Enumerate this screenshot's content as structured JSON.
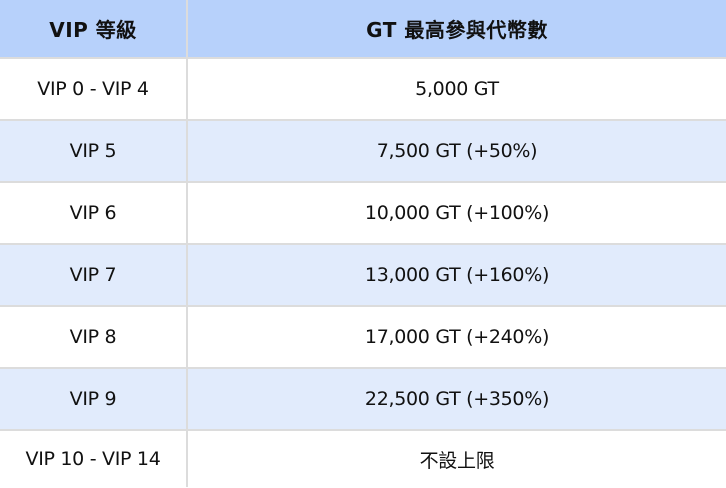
{
  "headers": [
    "VIP 等級",
    "GT 最高參與代幣數"
  ],
  "rows": [
    {
      "level": "VIP 0 - VIP 4",
      "max": "5,000 GT"
    },
    {
      "level": "VIP 5",
      "max": "7,500 GT (+50%)"
    },
    {
      "level": "VIP 6",
      "max": "10,000 GT (+100%)"
    },
    {
      "level": "VIP 7",
      "max": "13,000 GT (+160%)"
    },
    {
      "level": "VIP 8",
      "max": "17,000 GT (+240%)"
    },
    {
      "level": "VIP 9",
      "max": "22,500 GT (+350%)"
    },
    {
      "level": "VIP 10 - VIP 14",
      "max": "不設上限"
    }
  ],
  "colors": {
    "header_bg": "#b7d1fb",
    "alt_row_bg": "#e1ebfc",
    "border": "#dcdcdc"
  }
}
